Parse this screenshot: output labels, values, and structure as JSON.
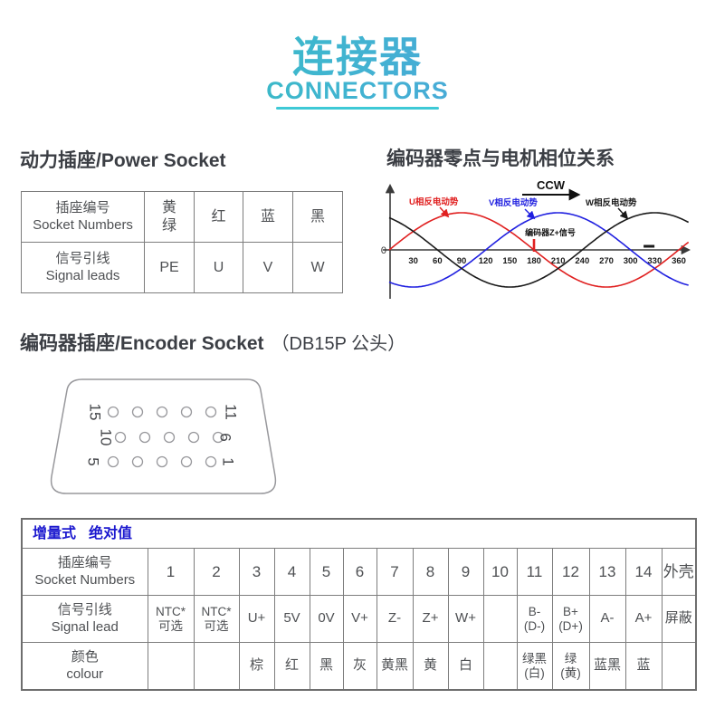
{
  "header": {
    "title_cn": "连接器",
    "title_en": "CONNECTORS"
  },
  "power_socket": {
    "heading": "动力插座/Power Socket",
    "rows": [
      {
        "label": [
          "插座编号",
          "Socket Numbers"
        ],
        "cells": [
          [
            "黄",
            "绿"
          ],
          [
            "红"
          ],
          [
            "蓝"
          ],
          [
            "黑"
          ]
        ]
      },
      {
        "label": [
          "信号引线",
          "Signal leads"
        ],
        "cells": [
          [
            "PE"
          ],
          [
            "U"
          ],
          [
            "V"
          ],
          [
            "W"
          ]
        ]
      }
    ]
  },
  "phase_section": {
    "heading": "编码器零点与电机相位关系"
  },
  "chart_data": {
    "type": "line",
    "title": "编码器零点与电机相位关系",
    "x_range": [
      0,
      360
    ],
    "x_ticks": [
      30,
      60,
      90,
      120,
      150,
      180,
      210,
      240,
      270,
      300,
      330,
      360
    ],
    "origin_label": "0",
    "rotation_label": "CCW",
    "amplitude": 1,
    "grid": false,
    "legend_position": "inline-labels",
    "series": [
      {
        "name": "U相反电动势",
        "color": "#e02020",
        "phase_deg": 0,
        "function": "sin(x)"
      },
      {
        "name": "V相反电动势",
        "color": "#2020e0",
        "phase_deg": -120,
        "function": "sin(x-120°)"
      },
      {
        "name": "W相反电动势",
        "color": "#1a1a1a",
        "phase_deg": 120,
        "function": "sin(x+120°)"
      }
    ],
    "annotations": [
      {
        "label": "编码器Z+信号",
        "x_deg": 180,
        "marker": "vertical-tick",
        "marker_color": "#e02020"
      },
      {
        "label": "",
        "x_deg": 323,
        "marker": "horizontal-dash",
        "marker_color": "#1a1a1a"
      }
    ]
  },
  "encoder_socket": {
    "heading_main": "编码器插座/Encoder Socket",
    "heading_note": "（DB15P 公头）",
    "pin_rows": [
      {
        "left_label": "15",
        "right_label": "11",
        "holes": 5
      },
      {
        "left_label": "10",
        "right_label": "6",
        "holes": 5
      },
      {
        "left_label": "5",
        "right_label": "1",
        "holes": 5
      }
    ]
  },
  "encoder_table": {
    "mode_header": [
      "增量式",
      "绝对值"
    ],
    "socket_row": {
      "label": [
        "插座编号",
        "Socket Numbers"
      ],
      "cells": [
        [
          "1"
        ],
        [
          "2"
        ],
        [
          "3"
        ],
        [
          "4"
        ],
        [
          "5"
        ],
        [
          "6"
        ],
        [
          "7"
        ],
        [
          "8"
        ],
        [
          "9"
        ],
        [
          "10"
        ],
        [
          "11"
        ],
        [
          "12"
        ],
        [
          "13"
        ],
        [
          "14"
        ],
        [
          "外壳"
        ]
      ]
    },
    "signal_row": {
      "label": [
        "信号引线",
        "Signal lead"
      ],
      "cells": [
        [
          "NTC*",
          "可选"
        ],
        [
          "NTC*",
          "可选"
        ],
        [
          "U+"
        ],
        [
          "5V"
        ],
        [
          "0V"
        ],
        [
          "V+"
        ],
        [
          "Z-"
        ],
        [
          "Z+"
        ],
        [
          "W+"
        ],
        [
          ""
        ],
        [
          "B-",
          "(D-)"
        ],
        [
          "B+",
          "(D+)"
        ],
        [
          "A-"
        ],
        [
          "A+"
        ],
        [
          "屏蔽"
        ]
      ]
    },
    "colour_row": {
      "label": [
        "颜色",
        "colour"
      ],
      "cells": [
        [
          ""
        ],
        [
          ""
        ],
        [
          "棕"
        ],
        [
          "红"
        ],
        [
          "黑"
        ],
        [
          "灰"
        ],
        [
          "黄黑"
        ],
        [
          "黄"
        ],
        [
          "白"
        ],
        [
          ""
        ],
        [
          "绿黑",
          "(白)"
        ],
        [
          "绿",
          "(黄)"
        ],
        [
          "蓝黑"
        ],
        [
          "蓝"
        ],
        [
          ""
        ]
      ]
    }
  },
  "colors": {
    "accent_teal": "#2ec3ad",
    "accent_blue": "#5897e4",
    "title_underline": "#3ec9d6",
    "heading_text": "#3b3e44",
    "table_text": "#4e5053",
    "table_border": "#7d7d7d",
    "mode_header_blue": "#1c19cf"
  }
}
